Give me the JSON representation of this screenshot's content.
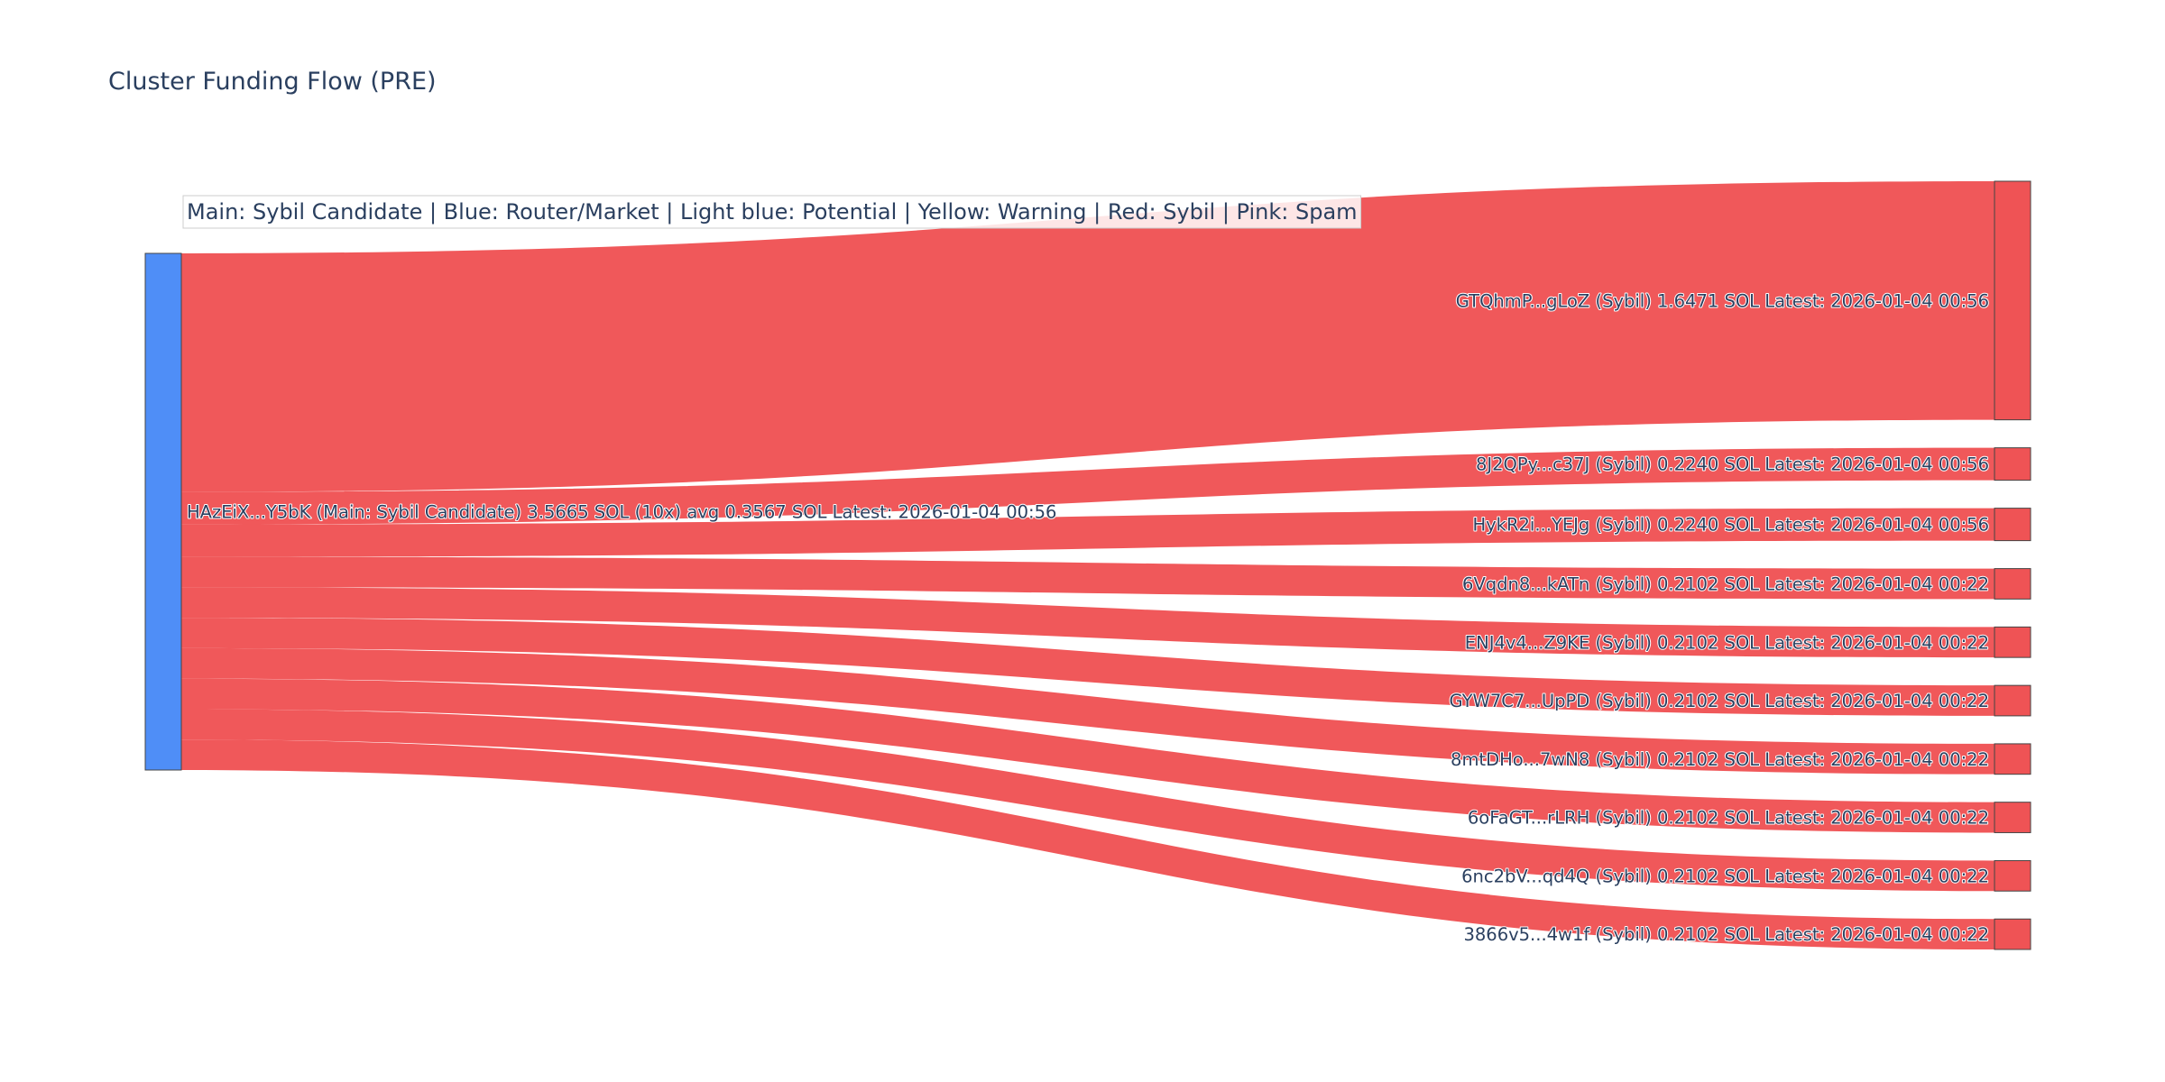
{
  "chart_data": {
    "type": "sankey",
    "title": "Cluster Funding Flow (PRE)",
    "legend_note": "Main: Sybil Candidate  |  Blue: Router/Market | Light blue: Potential | Yellow: Warning | Red: Sybil | Pink: Spam",
    "colors": {
      "source_node": "#4f8ef7",
      "target_node": "#ef5355",
      "link": "#ef5355",
      "node_border": "#444444"
    },
    "source": {
      "id": "HAzEiX...Y5bK",
      "label": "HAzEiX...Y5bK (Main: Sybil Candidate) 3.5665 SOL (10x) avg 0.3567 SOL Latest: 2026-01-04 00:56",
      "total_sol": 3.5665,
      "count": 10,
      "avg_sol": 0.3567
    },
    "targets": [
      {
        "id": "GTQhmP...gLoZ",
        "label": "GTQhmP...gLoZ (Sybil) 1.6471 SOL Latest: 2026-01-04 00:56",
        "value": 1.6471
      },
      {
        "id": "8J2QPy...c37J",
        "label": "8J2QPy...c37J (Sybil) 0.2240 SOL Latest: 2026-01-04 00:56",
        "value": 0.224
      },
      {
        "id": "HykR2i...YEJg",
        "label": "HykR2i...YEJg (Sybil) 0.2240 SOL Latest: 2026-01-04 00:56",
        "value": 0.224
      },
      {
        "id": "6Vqdn8...kATn",
        "label": "6Vqdn8...kATn (Sybil) 0.2102 SOL Latest: 2026-01-04 00:22",
        "value": 0.2102
      },
      {
        "id": "ENJ4v4...Z9KE",
        "label": "ENJ4v4...Z9KE (Sybil) 0.2102 SOL Latest: 2026-01-04 00:22",
        "value": 0.2102
      },
      {
        "id": "GYW7C7...UpPD",
        "label": "GYW7C7...UpPD (Sybil) 0.2102 SOL Latest: 2026-01-04 00:22",
        "value": 0.2102
      },
      {
        "id": "8mtDHo...7wN8",
        "label": "8mtDHo...7wN8 (Sybil) 0.2102 SOL Latest: 2026-01-04 00:22",
        "value": 0.2102
      },
      {
        "id": "6oFaGT...rLRH",
        "label": "6oFaGT...rLRH (Sybil) 0.2102 SOL Latest: 2026-01-04 00:22",
        "value": 0.2102
      },
      {
        "id": "6nc2bV...qd4Q",
        "label": "6nc2bV...qd4Q (Sybil) 0.2102 SOL Latest: 2026-01-04 00:22",
        "value": 0.2102
      },
      {
        "id": "3866v5...4w1f",
        "label": "3866v5...4w1f (Sybil) 0.2102 SOL Latest: 2026-01-04 00:22",
        "value": 0.2102
      }
    ]
  }
}
